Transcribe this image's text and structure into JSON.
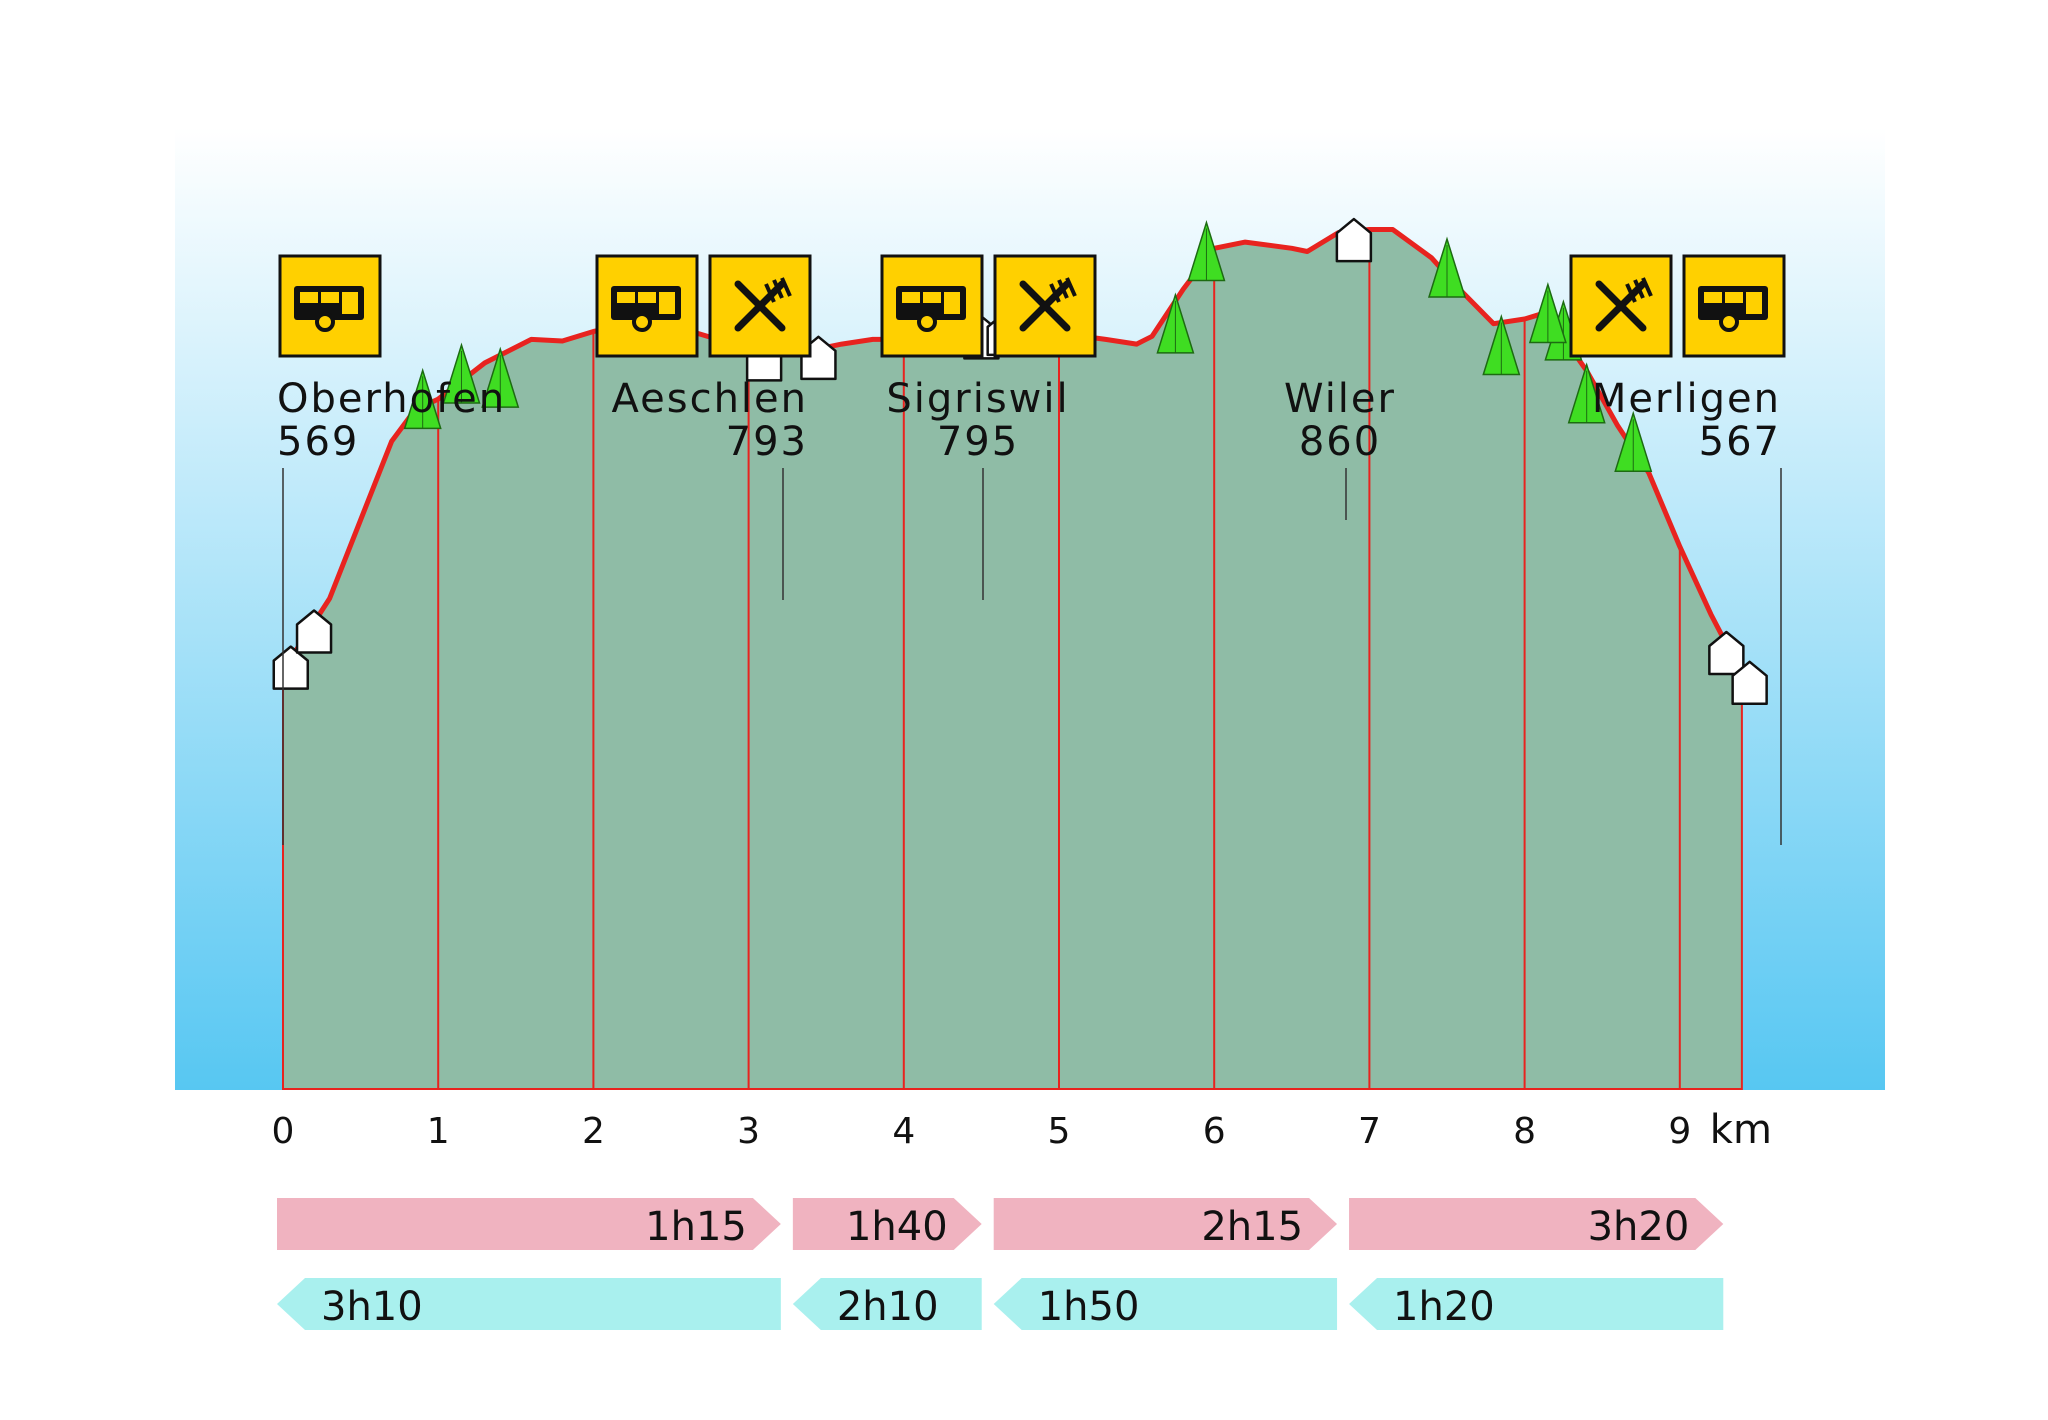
{
  "chart_data": {
    "type": "area",
    "title": "",
    "xlabel": "",
    "ylabel": "",
    "x_unit_label": "km",
    "x_ticks": [
      0,
      1,
      2,
      3,
      4,
      5,
      6,
      7,
      8,
      9
    ],
    "colors": {
      "area_fill": "#8fbca6",
      "profile_line": "#e8231f",
      "sky_top": "#ffffff",
      "sky_bottom": "#57c7f2",
      "icon_bg": "#ffd000",
      "forward_arrow": "#f0b3c0",
      "return_arrow": "#a9f0ee",
      "tree": "#3fdd22"
    },
    "profile": {
      "x_km": [
        0,
        0.3,
        0.5,
        0.7,
        0.85,
        1.0,
        1.3,
        1.6,
        1.8,
        2.0,
        2.3,
        2.5,
        2.6,
        2.8,
        3.0,
        3.2,
        3.4,
        3.6,
        3.8,
        4.0,
        4.2,
        4.4,
        4.6,
        5.0,
        5.3,
        5.5,
        5.6,
        5.8,
        6.0,
        6.2,
        6.5,
        6.6,
        6.8,
        7.0,
        7.15,
        7.4,
        7.6,
        7.8,
        8.0,
        8.1,
        8.2,
        8.4,
        8.6,
        8.8,
        9.0,
        9.2,
        9.4
      ],
      "elevation": [
        569,
        615,
        665,
        715,
        735,
        742,
        765,
        780,
        779,
        785,
        791,
        789,
        786,
        780,
        776,
        770,
        773,
        777,
        780,
        780,
        780,
        784,
        790,
        784,
        780,
        777,
        782,
        812,
        838,
        842,
        838,
        836,
        848,
        850,
        850,
        832,
        810,
        790,
        793,
        796,
        788,
        760,
        725,
        695,
        648,
        605,
        567
      ]
    },
    "places": [
      {
        "name": "Oberhofen",
        "elevation": "569",
        "km": 0,
        "icons": [
          "bus-icon"
        ]
      },
      {
        "name": "Aeschlen",
        "elevation": "793",
        "km": 3.3,
        "icons": [
          "bus-icon",
          "restaurant-icon"
        ]
      },
      {
        "name": "Sigriswil",
        "elevation": "795",
        "km": 4.6,
        "icons": [
          "bus-icon",
          "restaurant-icon"
        ]
      },
      {
        "name": "Wiler",
        "elevation": "860",
        "km": 6.9,
        "icons": []
      },
      {
        "name": "Merligen",
        "elevation": "567",
        "km": 9.35,
        "icons": [
          "restaurant-icon",
          "bus-icon"
        ]
      }
    ],
    "forward_times": [
      {
        "label": "1h15",
        "from_km": 0,
        "to_km": 3.3
      },
      {
        "label": "1h40",
        "from_km": 3.3,
        "to_km": 4.6
      },
      {
        "label": "2h15",
        "from_km": 4.6,
        "to_km": 6.9
      },
      {
        "label": "3h20",
        "from_km": 6.9,
        "to_km": 9.4
      }
    ],
    "return_times": [
      {
        "label": "3h10",
        "from_km": 0,
        "to_km": 3.3
      },
      {
        "label": "2h10",
        "from_km": 3.3,
        "to_km": 4.6
      },
      {
        "label": "1h50",
        "from_km": 4.6,
        "to_km": 6.9
      },
      {
        "label": "1h20",
        "from_km": 6.9,
        "to_km": 9.4
      }
    ],
    "houses_km": [
      0.05,
      0.2,
      3.1,
      3.45,
      4.5,
      4.65,
      6.9,
      9.3,
      9.45
    ],
    "trees_km": [
      0.9,
      1.15,
      1.4,
      2.15,
      2.4,
      5.75,
      5.95,
      7.5,
      7.85,
      8.25,
      8.15,
      8.4,
      8.7
    ]
  }
}
